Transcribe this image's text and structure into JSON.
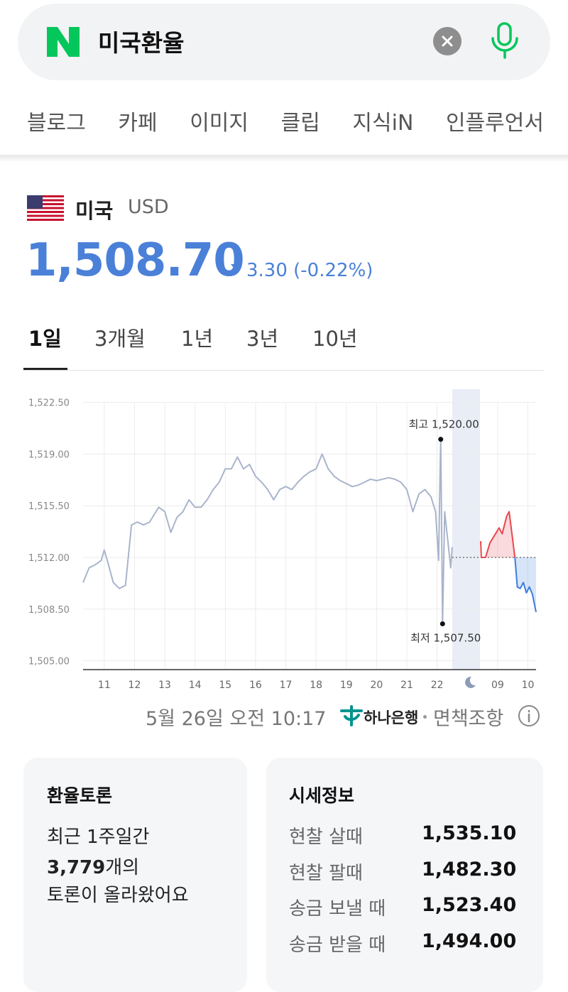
{
  "search": {
    "query": "미국환율"
  },
  "search_tabs": [
    "블로그",
    "카페",
    "이미지",
    "클립",
    "지식iN",
    "인플루언서"
  ],
  "currency": {
    "country": "미국",
    "code": "USD",
    "rate": "1,508.70",
    "change": "3.30 (-0.22%)"
  },
  "period_tabs": [
    "1일",
    "3개월",
    "1년",
    "3년",
    "10년"
  ],
  "chart_data": {
    "type": "line",
    "xlim": [
      10.3,
      25.27
    ],
    "ylim": [
      1504.4,
      1523.4
    ],
    "xticks": [
      11,
      12,
      13,
      14,
      15,
      16,
      17,
      18,
      19,
      20,
      21,
      22,
      {
        "value": 24,
        "label": "09"
      },
      {
        "value": 25,
        "label": "10"
      }
    ],
    "yticks": [
      {
        "value": 1505,
        "label": "1,505.00"
      },
      {
        "value": 1508.5,
        "label": "1,508.50"
      },
      {
        "value": 1512,
        "label": "1,512.00"
      },
      {
        "value": 1515.5,
        "label": "1,515.50"
      },
      {
        "value": 1519,
        "label": "1,519.00"
      },
      {
        "value": 1522.5,
        "label": "1,522.50"
      }
    ],
    "grid": true,
    "baseline": 1512,
    "series": [
      {
        "color": "#a9b4cc",
        "fill": false,
        "x": [
          10.3,
          10.5,
          10.7,
          10.9,
          11.0,
          11.1,
          11.3,
          11.5,
          11.7,
          11.9,
          12.1,
          12.3,
          12.5,
          12.8,
          13.0,
          13.2,
          13.4,
          13.6,
          13.8,
          14.0,
          14.2,
          14.4,
          14.6,
          14.8,
          15.0,
          15.2,
          15.4,
          15.6,
          15.8,
          16.0,
          16.2,
          16.4,
          16.6,
          16.8,
          17.0,
          17.2,
          17.4,
          17.6,
          17.8,
          18.0,
          18.2,
          18.4,
          18.6,
          18.8,
          19.0,
          19.2,
          19.4,
          19.6,
          19.8,
          20.0,
          20.2,
          20.4,
          20.6,
          20.8,
          21.0,
          21.2,
          21.4,
          21.6,
          21.8,
          21.95,
          22.05,
          22.1,
          22.12,
          22.18,
          22.25,
          22.35,
          22.45,
          22.5
        ],
        "values": [
          1510.3,
          1511.3,
          1511.5,
          1511.8,
          1512.5,
          1511.8,
          1510.3,
          1509.9,
          1510.1,
          1514.2,
          1514.4,
          1514.2,
          1514.4,
          1515.4,
          1515.1,
          1513.7,
          1514.7,
          1515.1,
          1515.9,
          1515.4,
          1515.4,
          1515.9,
          1516.6,
          1517.1,
          1518.0,
          1518.0,
          1518.8,
          1518.0,
          1518.3,
          1517.5,
          1517.1,
          1516.6,
          1515.9,
          1516.6,
          1516.8,
          1516.6,
          1517.1,
          1517.5,
          1517.8,
          1518.0,
          1519.0,
          1518.0,
          1517.5,
          1517.2,
          1517.0,
          1516.8,
          1516.9,
          1517.1,
          1517.3,
          1517.2,
          1517.3,
          1517.4,
          1517.3,
          1517.1,
          1516.6,
          1515.1,
          1516.3,
          1516.6,
          1516.1,
          1515.1,
          1511.8,
          1518.0,
          1520.0,
          1507.5,
          1515.1,
          1513.2,
          1511.3,
          1512.7
        ]
      },
      {
        "color": "#e8474f",
        "fill": true,
        "x": [
          23.44,
          23.46,
          23.6,
          23.75,
          23.9,
          24.05,
          24.15,
          24.3,
          24.38,
          24.48,
          24.57
        ],
        "values": [
          1513.1,
          1512.0,
          1512.0,
          1513.0,
          1513.5,
          1514.0,
          1513.6,
          1514.8,
          1515.1,
          1513.5,
          1512.0
        ]
      },
      {
        "color": "#3b7ddd",
        "fill": true,
        "x": [
          24.57,
          24.65,
          24.75,
          24.85,
          24.95,
          25.05,
          25.15,
          25.27
        ],
        "values": [
          1512.0,
          1510.0,
          1509.9,
          1510.3,
          1509.6,
          1510.0,
          1509.5,
          1508.3
        ]
      }
    ],
    "annotations": [
      {
        "text": "최고 1,520.00",
        "x": 22.12,
        "y": 1520.0
      },
      {
        "text": "최저 1,507.50",
        "x": 22.18,
        "y": 1507.5
      }
    ]
  },
  "footer": {
    "timestamp": "5월 26일 오전 10:17",
    "bank": "하나은행",
    "disclaimer": "면책조항"
  },
  "discussion": {
    "title": "환율토론",
    "line1": "최근 1주일간",
    "count": "3,779",
    "count_suffix": "개의",
    "line3": "토론이 올라왔어요"
  },
  "quotes": {
    "title": "시세정보",
    "rows": [
      [
        "현찰 살때",
        "1,535.10"
      ],
      [
        "현찰 팔때",
        "1,482.30"
      ],
      [
        "송금 보낼 때",
        "1,523.40"
      ],
      [
        "송금 받을 때",
        "1,494.00"
      ]
    ]
  }
}
